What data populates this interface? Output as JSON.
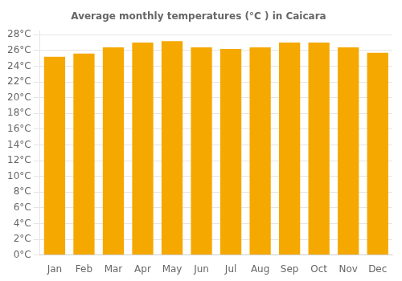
{
  "chart_data": {
    "type": "bar",
    "title": "Average monthly temperatures (°C ) in Caicara",
    "categories": [
      "Jan",
      "Feb",
      "Mar",
      "Apr",
      "May",
      "Jun",
      "Jul",
      "Aug",
      "Sep",
      "Oct",
      "Nov",
      "Dec"
    ],
    "values": [
      25.2,
      25.6,
      26.4,
      27.0,
      27.2,
      26.4,
      26.2,
      26.4,
      27.0,
      27.0,
      26.4,
      25.7
    ],
    "color": "#F5A800",
    "ylim": [
      0,
      28.5
    ],
    "yticks": [
      {
        "value": 0,
        "label": "0°C"
      },
      {
        "value": 2,
        "label": "2°C"
      },
      {
        "value": 4,
        "label": "4°C"
      },
      {
        "value": 6,
        "label": "6°C"
      },
      {
        "value": 8,
        "label": "8°C"
      },
      {
        "value": 10,
        "label": "10°C"
      },
      {
        "value": 12,
        "label": "12°C"
      },
      {
        "value": 14,
        "label": "14°C"
      },
      {
        "value": 16,
        "label": "16°C"
      },
      {
        "value": 18,
        "label": "18°C"
      },
      {
        "value": 20,
        "label": "20°C"
      },
      {
        "value": 22,
        "label": "22°C"
      },
      {
        "value": 24,
        "label": "24°C"
      },
      {
        "value": 26,
        "label": "26°C"
      },
      {
        "value": 28,
        "label": "28°C"
      }
    ],
    "grid": true
  }
}
